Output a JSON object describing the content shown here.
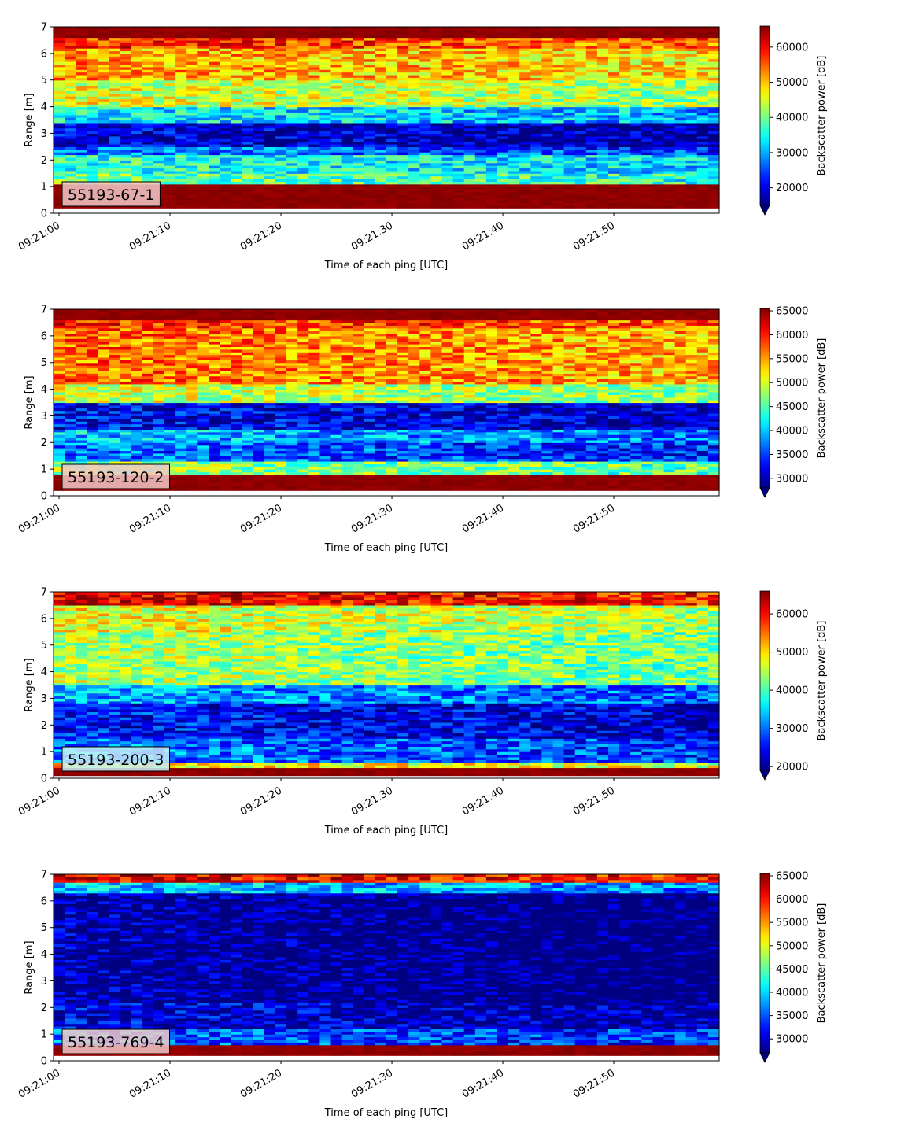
{
  "figure": {
    "colormap": "jet",
    "panel_label_background": "#f2c8c8",
    "panel_label_background_alt": "#c8f0f8"
  },
  "chart_data": [
    {
      "type": "heatmap",
      "label": "55193-67-1",
      "xlabel": "Time of each ping [UTC]",
      "ylabel": "Range [m]",
      "colorbar_label": "Backscatter power [dB]",
      "x_ticks": [
        "09:21:00",
        "09:21:10",
        "09:21:20",
        "09:21:30",
        "09:21:40",
        "09:21:50"
      ],
      "x_tick_seconds": [
        0,
        10,
        20,
        30,
        40,
        50
      ],
      "xlim_seconds": [
        -0.5,
        59.5
      ],
      "y_ticks": [
        0,
        1,
        2,
        3,
        4,
        5,
        6,
        7
      ],
      "ylim": [
        0,
        7
      ],
      "colorbar_ticks": [
        20000,
        30000,
        40000,
        50000,
        60000
      ],
      "clim": [
        15000,
        66000
      ],
      "n_pings": 60,
      "bands": [
        {
          "range": [
            0.2,
            1.1
          ],
          "level": 66000
        },
        {
          "range": [
            1.1,
            1.5
          ],
          "level": 40000
        },
        {
          "range": [
            1.5,
            2.2
          ],
          "level": 36000
        },
        {
          "range": [
            2.2,
            2.5
          ],
          "level": 28000
        },
        {
          "range": [
            2.5,
            3.4
          ],
          "level": 20000
        },
        {
          "range": [
            3.4,
            4.0
          ],
          "level": 34000
        },
        {
          "range": [
            4.0,
            5.0
          ],
          "level": 46000
        },
        {
          "range": [
            5.0,
            6.2
          ],
          "level": 52000
        },
        {
          "range": [
            6.2,
            6.6
          ],
          "level": 58000
        },
        {
          "range": [
            6.6,
            7.0
          ],
          "level": 66000
        }
      ]
    },
    {
      "type": "heatmap",
      "label": "55193-120-2",
      "xlabel": "Time of each ping [UTC]",
      "ylabel": "Range [m]",
      "colorbar_label": "Backscatter power [dB]",
      "x_ticks": [
        "09:21:00",
        "09:21:10",
        "09:21:20",
        "09:21:30",
        "09:21:40",
        "09:21:50"
      ],
      "x_tick_seconds": [
        0,
        10,
        20,
        30,
        40,
        50
      ],
      "xlim_seconds": [
        -0.5,
        59.5
      ],
      "y_ticks": [
        0,
        1,
        2,
        3,
        4,
        5,
        6,
        7
      ],
      "ylim": [
        0,
        7
      ],
      "colorbar_ticks": [
        30000,
        35000,
        40000,
        45000,
        50000,
        55000,
        60000,
        65000
      ],
      "clim": [
        28000,
        65500
      ],
      "n_pings": 60,
      "bands": [
        {
          "range": [
            0.2,
            0.8
          ],
          "level": 65500
        },
        {
          "range": [
            0.8,
            1.3
          ],
          "level": 48000
        },
        {
          "range": [
            1.3,
            2.0
          ],
          "level": 37000
        },
        {
          "range": [
            2.0,
            2.5
          ],
          "level": 40000
        },
        {
          "range": [
            2.5,
            3.5
          ],
          "level": 33000
        },
        {
          "range": [
            3.5,
            4.2
          ],
          "level": 50000
        },
        {
          "range": [
            4.2,
            6.3
          ],
          "level": 57000
        },
        {
          "range": [
            6.3,
            6.6
          ],
          "level": 60000
        },
        {
          "range": [
            6.6,
            7.0
          ],
          "level": 65500
        }
      ]
    },
    {
      "type": "heatmap",
      "label": "55193-200-3",
      "xlabel": "Time of each ping [UTC]",
      "ylabel": "Range [m]",
      "colorbar_label": "Backscatter power [dB]",
      "x_ticks": [
        "09:21:00",
        "09:21:10",
        "09:21:20",
        "09:21:30",
        "09:21:40",
        "09:21:50"
      ],
      "x_tick_seconds": [
        0,
        10,
        20,
        30,
        40,
        50
      ],
      "xlim_seconds": [
        -0.5,
        59.5
      ],
      "y_ticks": [
        0,
        1,
        2,
        3,
        4,
        5,
        6,
        7
      ],
      "ylim": [
        0,
        7
      ],
      "colorbar_ticks": [
        20000,
        30000,
        40000,
        50000,
        60000
      ],
      "clim": [
        19000,
        66000
      ],
      "n_pings": 60,
      "bands": [
        {
          "range": [
            0.1,
            0.4
          ],
          "level": 66000
        },
        {
          "range": [
            0.4,
            0.6
          ],
          "level": 50000
        },
        {
          "range": [
            0.6,
            1.5
          ],
          "level": 31000
        },
        {
          "range": [
            1.5,
            2.8
          ],
          "level": 26000
        },
        {
          "range": [
            2.8,
            3.5
          ],
          "level": 33000
        },
        {
          "range": [
            3.5,
            5.5
          ],
          "level": 45000
        },
        {
          "range": [
            5.5,
            6.5
          ],
          "level": 48000
        },
        {
          "range": [
            6.5,
            7.0
          ],
          "level": 62000
        }
      ]
    },
    {
      "type": "heatmap",
      "label": "55193-769-4",
      "xlabel": "Time of each ping [UTC]",
      "ylabel": "Range [m]",
      "colorbar_label": "Backscatter power [dB]",
      "x_ticks": [
        "09:21:00",
        "09:21:10",
        "09:21:20",
        "09:21:30",
        "09:21:40",
        "09:21:50"
      ],
      "x_tick_seconds": [
        0,
        10,
        20,
        30,
        40,
        50
      ],
      "xlim_seconds": [
        -0.5,
        59.5
      ],
      "y_ticks": [
        0,
        1,
        2,
        3,
        4,
        5,
        6,
        7
      ],
      "ylim": [
        0,
        7
      ],
      "colorbar_ticks": [
        30000,
        35000,
        40000,
        45000,
        50000,
        55000,
        60000,
        65000
      ],
      "clim": [
        27000,
        65500
      ],
      "n_pings": 60,
      "bands": [
        {
          "range": [
            0.2,
            0.6
          ],
          "level": 65500
        },
        {
          "range": [
            0.6,
            1.2
          ],
          "level": 36000
        },
        {
          "range": [
            1.2,
            2.2
          ],
          "level": 31000
        },
        {
          "range": [
            2.2,
            6.3
          ],
          "level": 28500
        },
        {
          "range": [
            6.3,
            6.7
          ],
          "level": 40000
        },
        {
          "range": [
            6.7,
            7.0
          ],
          "level": 62000
        }
      ]
    }
  ]
}
